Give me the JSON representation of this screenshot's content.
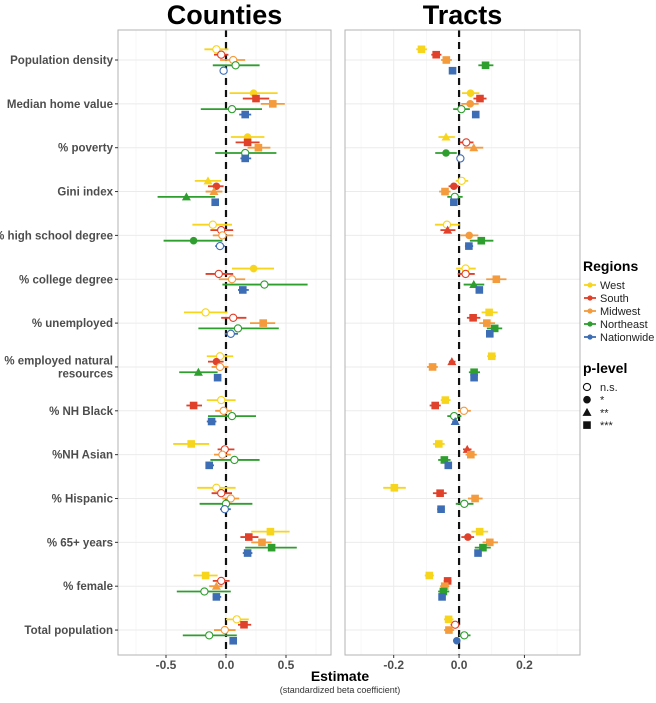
{
  "chart_data": {
    "type": "forest",
    "panels": [
      {
        "title": "Counties",
        "xlim": [
          -0.9,
          0.875
        ],
        "ticks": [
          -0.5,
          0.0,
          0.5
        ],
        "tick_labels": [
          "-0.5",
          "0.0",
          "0.5"
        ],
        "minor": [
          -0.75,
          -0.25,
          0.25,
          0.75
        ]
      },
      {
        "title": "Tracts",
        "xlim": [
          -0.349,
          0.37
        ],
        "ticks": [
          -0.2,
          0.0,
          0.2
        ],
        "tick_labels": [
          "-0.2",
          "0.0",
          "0.2"
        ],
        "minor": [
          -0.3,
          -0.1,
          0.1,
          0.3
        ]
      }
    ],
    "xlabel": "Estimate",
    "xlabel_sub": "(standardized beta coefficient)",
    "reference_line": 0,
    "legend_placement": "right",
    "regions": {
      "title": "Regions",
      "items": [
        {
          "name": "West",
          "color": "#f7d51c"
        },
        {
          "name": "South",
          "color": "#e0412b"
        },
        {
          "name": "Midwest",
          "color": "#f39b3d"
        },
        {
          "name": "Northeast",
          "color": "#2e9e2e"
        },
        {
          "name": "Nationwide",
          "color": "#3c6db5"
        }
      ]
    },
    "plevel": {
      "title": "p-level",
      "items": [
        {
          "label": "n.s.",
          "shape": "open-circle"
        },
        {
          "label": "*",
          "shape": "circle"
        },
        {
          "label": "**",
          "shape": "triangle"
        },
        {
          "label": "***",
          "shape": "square"
        }
      ]
    },
    "series_order": [
      "West",
      "South",
      "Midwest",
      "Northeast",
      "Nationwide"
    ],
    "variables": [
      {
        "label": [
          "Population density"
        ],
        "counties": [
          [
            -0.08,
            -0.18,
            0.02,
            "ns"
          ],
          [
            -0.04,
            -0.1,
            0.02,
            "ns"
          ],
          [
            0.06,
            -0.05,
            0.16,
            "ns"
          ],
          [
            0.08,
            -0.11,
            0.28,
            "ns"
          ],
          [
            -0.02,
            -0.04,
            0.01,
            "ns"
          ]
        ],
        "tracts": [
          [
            -0.115,
            -0.131,
            -0.098,
            "***"
          ],
          [
            -0.07,
            -0.085,
            -0.054,
            "***"
          ],
          [
            -0.039,
            -0.055,
            -0.022,
            "***"
          ],
          [
            0.081,
            0.059,
            0.105,
            "***"
          ],
          [
            -0.02,
            -0.026,
            -0.014,
            "***"
          ]
        ]
      },
      {
        "label": [
          "Median home value"
        ],
        "counties": [
          [
            0.23,
            0.03,
            0.43,
            "*"
          ],
          [
            0.25,
            0.14,
            0.36,
            "***"
          ],
          [
            0.39,
            0.29,
            0.49,
            "***"
          ],
          [
            0.05,
            -0.21,
            0.3,
            "ns"
          ],
          [
            0.16,
            0.11,
            0.21,
            "***"
          ]
        ],
        "tracts": [
          [
            0.035,
            0.009,
            0.062,
            "*"
          ],
          [
            0.064,
            0.044,
            0.084,
            "***"
          ],
          [
            0.034,
            0.007,
            0.06,
            "*"
          ],
          [
            0.007,
            -0.018,
            0.033,
            "ns"
          ],
          [
            0.051,
            0.041,
            0.061,
            "***"
          ]
        ]
      },
      {
        "label": [
          "% poverty"
        ],
        "counties": [
          [
            0.18,
            0.04,
            0.32,
            "*"
          ],
          [
            0.18,
            0.08,
            0.28,
            "***"
          ],
          [
            0.27,
            0.18,
            0.37,
            "***"
          ],
          [
            0.16,
            -0.09,
            0.42,
            "ns"
          ],
          [
            0.16,
            0.12,
            0.21,
            "***"
          ]
        ],
        "tracts": [
          [
            -0.04,
            -0.063,
            -0.013,
            "**"
          ],
          [
            0.022,
            0.002,
            0.044,
            "ns"
          ],
          [
            0.045,
            0.015,
            0.074,
            "**"
          ],
          [
            -0.04,
            -0.073,
            -0.007,
            "*"
          ],
          [
            0.004,
            -0.005,
            0.015,
            "ns"
          ]
        ]
      },
      {
        "label": [
          "Gini index"
        ],
        "counties": [
          [
            -0.15,
            -0.26,
            -0.04,
            "**"
          ],
          [
            -0.08,
            -0.15,
            -0.02,
            "*"
          ],
          [
            -0.1,
            -0.17,
            -0.03,
            "**"
          ],
          [
            -0.33,
            -0.57,
            -0.09,
            "**"
          ],
          [
            -0.09,
            -0.12,
            -0.06,
            "***"
          ]
        ],
        "tracts": [
          [
            0.008,
            -0.01,
            0.028,
            "ns"
          ],
          [
            -0.016,
            -0.032,
            0.0,
            "*"
          ],
          [
            -0.043,
            -0.061,
            -0.026,
            "***"
          ],
          [
            -0.013,
            -0.036,
            0.011,
            "ns"
          ],
          [
            -0.016,
            -0.026,
            -0.007,
            "***"
          ]
        ]
      },
      {
        "label": [
          "% high school degree"
        ],
        "counties": [
          [
            -0.11,
            -0.28,
            0.05,
            "ns"
          ],
          [
            -0.04,
            -0.13,
            0.06,
            "ns"
          ],
          [
            -0.03,
            -0.11,
            0.06,
            "ns"
          ],
          [
            -0.27,
            -0.52,
            -0.03,
            "*"
          ],
          [
            -0.05,
            -0.09,
            -0.01,
            "ns"
          ]
        ],
        "tracts": [
          [
            -0.037,
            -0.074,
            0.002,
            "ns"
          ],
          [
            -0.035,
            -0.057,
            -0.011,
            "**"
          ],
          [
            0.031,
            0.004,
            0.059,
            "*"
          ],
          [
            0.068,
            0.033,
            0.105,
            "***"
          ],
          [
            0.03,
            0.018,
            0.043,
            "***"
          ]
        ]
      },
      {
        "label": [
          "% college degree"
        ],
        "counties": [
          [
            0.23,
            0.05,
            0.4,
            "*"
          ],
          [
            -0.06,
            -0.17,
            0.06,
            "ns"
          ],
          [
            0.05,
            -0.06,
            0.16,
            "ns"
          ],
          [
            0.32,
            -0.03,
            0.68,
            "ns"
          ],
          [
            0.14,
            0.1,
            0.19,
            "***"
          ]
        ],
        "tracts": [
          [
            0.02,
            -0.009,
            0.051,
            "ns"
          ],
          [
            0.02,
            -0.004,
            0.048,
            "ns"
          ],
          [
            0.114,
            0.083,
            0.145,
            "***"
          ],
          [
            0.045,
            0.014,
            0.077,
            "**"
          ],
          [
            0.062,
            0.052,
            0.072,
            "***"
          ]
        ]
      },
      {
        "label": [
          "% unemployed"
        ],
        "counties": [
          [
            -0.17,
            -0.35,
            0.01,
            "ns"
          ],
          [
            0.06,
            -0.04,
            0.17,
            "ns"
          ],
          [
            0.31,
            0.2,
            0.41,
            "***"
          ],
          [
            0.1,
            -0.23,
            0.44,
            "ns"
          ],
          [
            0.04,
            -0.01,
            0.1,
            "ns"
          ]
        ],
        "tracts": [
          [
            0.092,
            0.069,
            0.118,
            "***"
          ],
          [
            0.043,
            0.024,
            0.065,
            "***"
          ],
          [
            0.085,
            0.062,
            0.11,
            "***"
          ],
          [
            0.109,
            0.085,
            0.132,
            "***"
          ],
          [
            0.094,
            0.084,
            0.105,
            "***"
          ]
        ]
      },
      {
        "label": [
          "% employed natural",
          "resources"
        ],
        "counties": [
          [
            -0.05,
            -0.16,
            0.06,
            "ns"
          ],
          [
            -0.08,
            -0.15,
            -0.02,
            "*"
          ],
          [
            -0.05,
            -0.12,
            0.02,
            "ns"
          ],
          [
            -0.23,
            -0.39,
            -0.07,
            "**"
          ],
          [
            -0.07,
            -0.1,
            -0.04,
            "***"
          ]
        ],
        "tracts": [
          [
            0.1,
            0.086,
            0.113,
            "***"
          ],
          [
            -0.022,
            -0.031,
            -0.011,
            "**"
          ],
          [
            -0.081,
            -0.098,
            -0.065,
            "***"
          ],
          [
            0.046,
            0.03,
            0.064,
            "***"
          ],
          [
            0.046,
            0.04,
            0.052,
            "***"
          ]
        ]
      },
      {
        "label": [
          "% NH Black"
        ],
        "counties": [
          [
            -0.04,
            -0.16,
            0.08,
            "ns"
          ],
          [
            -0.27,
            -0.33,
            -0.2,
            "***"
          ],
          [
            -0.02,
            -0.09,
            0.05,
            "ns"
          ],
          [
            0.05,
            -0.15,
            0.25,
            "ns"
          ],
          [
            -0.12,
            -0.16,
            -0.08,
            "***"
          ]
        ],
        "tracts": [
          [
            -0.042,
            -0.056,
            -0.026,
            "***"
          ],
          [
            -0.073,
            -0.09,
            -0.056,
            "***"
          ],
          [
            0.015,
            -0.003,
            0.036,
            "ns"
          ],
          [
            -0.015,
            -0.036,
            0.007,
            "ns"
          ],
          [
            -0.012,
            -0.021,
            -0.003,
            "**"
          ]
        ]
      },
      {
        "label": [
          "%NH Asian"
        ],
        "counties": [
          [
            -0.29,
            -0.44,
            -0.14,
            "***"
          ],
          [
            -0.01,
            -0.07,
            0.07,
            "ns"
          ],
          [
            -0.03,
            -0.1,
            0.04,
            "ns"
          ],
          [
            0.07,
            -0.13,
            0.28,
            "ns"
          ],
          [
            -0.14,
            -0.17,
            -0.1,
            "***"
          ]
        ],
        "tracts": [
          [
            -0.062,
            -0.08,
            -0.044,
            "***"
          ],
          [
            0.025,
            0.012,
            0.038,
            "**"
          ],
          [
            0.036,
            0.02,
            0.054,
            "***"
          ],
          [
            -0.045,
            -0.064,
            -0.026,
            "***"
          ],
          [
            -0.033,
            -0.041,
            -0.025,
            "***"
          ]
        ]
      },
      {
        "label": [
          "% Hispanic"
        ],
        "counties": [
          [
            -0.08,
            -0.24,
            0.08,
            "ns"
          ],
          [
            -0.04,
            -0.12,
            0.05,
            "ns"
          ],
          [
            0.04,
            -0.03,
            0.11,
            "ns"
          ],
          [
            0.0,
            -0.22,
            0.22,
            "ns"
          ],
          [
            -0.01,
            -0.05,
            0.04,
            "ns"
          ]
        ],
        "tracts": [
          [
            -0.198,
            -0.232,
            -0.163,
            "***"
          ],
          [
            -0.058,
            -0.08,
            -0.038,
            "***"
          ],
          [
            0.049,
            0.027,
            0.072,
            "***"
          ],
          [
            0.016,
            -0.01,
            0.044,
            "ns"
          ],
          [
            -0.055,
            -0.067,
            -0.044,
            "***"
          ]
        ]
      },
      {
        "label": [
          "% 65+ years"
        ],
        "counties": [
          [
            0.37,
            0.21,
            0.53,
            "***"
          ],
          [
            0.19,
            0.12,
            0.27,
            "***"
          ],
          [
            0.3,
            0.21,
            0.38,
            "***"
          ],
          [
            0.38,
            0.16,
            0.59,
            "***"
          ],
          [
            0.18,
            0.14,
            0.22,
            "***"
          ]
        ],
        "tracts": [
          [
            0.063,
            0.038,
            0.089,
            "***"
          ],
          [
            0.027,
            0.007,
            0.046,
            "*"
          ],
          [
            0.094,
            0.072,
            0.119,
            "***"
          ],
          [
            0.073,
            0.048,
            0.097,
            "***"
          ],
          [
            0.058,
            0.048,
            0.069,
            "***"
          ]
        ]
      },
      {
        "label": [
          "% female"
        ],
        "counties": [
          [
            -0.17,
            -0.27,
            -0.07,
            "***"
          ],
          [
            -0.04,
            -0.11,
            0.03,
            "ns"
          ],
          [
            -0.08,
            -0.14,
            -0.03,
            "**"
          ],
          [
            -0.18,
            -0.41,
            0.04,
            "ns"
          ],
          [
            -0.08,
            -0.11,
            -0.04,
            "***"
          ]
        ],
        "tracts": [
          [
            -0.091,
            -0.105,
            -0.077,
            "***"
          ],
          [
            -0.035,
            -0.047,
            -0.023,
            "***"
          ],
          [
            -0.044,
            -0.058,
            -0.03,
            "***"
          ],
          [
            -0.048,
            -0.064,
            -0.03,
            "***"
          ],
          [
            -0.052,
            -0.06,
            -0.044,
            "***"
          ]
        ]
      },
      {
        "label": [
          "Total population"
        ],
        "counties": [
          [
            0.09,
            0.0,
            0.19,
            "ns"
          ],
          [
            0.15,
            0.1,
            0.21,
            "***"
          ],
          [
            -0.01,
            -0.1,
            0.08,
            "ns"
          ],
          [
            -0.14,
            -0.36,
            0.09,
            "ns"
          ],
          [
            0.06,
            0.04,
            0.08,
            "***"
          ]
        ],
        "tracts": [
          [
            -0.032,
            -0.046,
            -0.017,
            "***"
          ],
          [
            -0.012,
            -0.026,
            0.002,
            "ns"
          ],
          [
            -0.031,
            -0.046,
            -0.015,
            "***"
          ],
          [
            0.016,
            0.0,
            0.035,
            "ns"
          ],
          [
            -0.007,
            -0.016,
            0.001,
            "*"
          ]
        ]
      }
    ]
  }
}
